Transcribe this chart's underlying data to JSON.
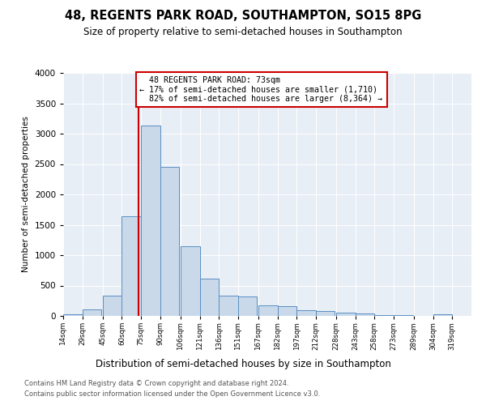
{
  "title": "48, REGENTS PARK ROAD, SOUTHAMPTON, SO15 8PG",
  "subtitle": "Size of property relative to semi-detached houses in Southampton",
  "xlabel": "Distribution of semi-detached houses by size in Southampton",
  "ylabel": "Number of semi-detached properties",
  "footnote1": "Contains HM Land Registry data © Crown copyright and database right 2024.",
  "footnote2": "Contains public sector information licensed under the Open Government Licence v3.0.",
  "annotation_text": "  48 REGENTS PARK ROAD: 73sqm\n← 17% of semi-detached houses are smaller (1,710)\n  82% of semi-detached houses are larger (8,364) →",
  "bar_left_edges": [
    14,
    29,
    45,
    60,
    75,
    90,
    106,
    121,
    136,
    151,
    167,
    182,
    197,
    212,
    228,
    243,
    258,
    273,
    289,
    304
  ],
  "bar_heights": [
    30,
    110,
    330,
    1640,
    3130,
    2450,
    1150,
    620,
    330,
    320,
    175,
    160,
    100,
    80,
    50,
    35,
    20,
    10,
    5,
    30
  ],
  "bin_width": 15,
  "bar_color": "#c9d9ea",
  "bar_edge_color": "#5a8fc2",
  "vline_x": 73,
  "vline_color": "#cc0000",
  "annotation_box_color": "#cc0000",
  "bg_color": "#e8eef6",
  "grid_color": "#ffffff",
  "ylim": [
    0,
    4000
  ],
  "yticks": [
    0,
    500,
    1000,
    1500,
    2000,
    2500,
    3000,
    3500,
    4000
  ],
  "tick_labels": [
    "14sqm",
    "29sqm",
    "45sqm",
    "60sqm",
    "75sqm",
    "90sqm",
    "106sqm",
    "121sqm",
    "136sqm",
    "151sqm",
    "167sqm",
    "182sqm",
    "197sqm",
    "212sqm",
    "228sqm",
    "243sqm",
    "258sqm",
    "273sqm",
    "289sqm",
    "304sqm",
    "319sqm"
  ],
  "xlim_left": 14,
  "xlim_right": 334
}
